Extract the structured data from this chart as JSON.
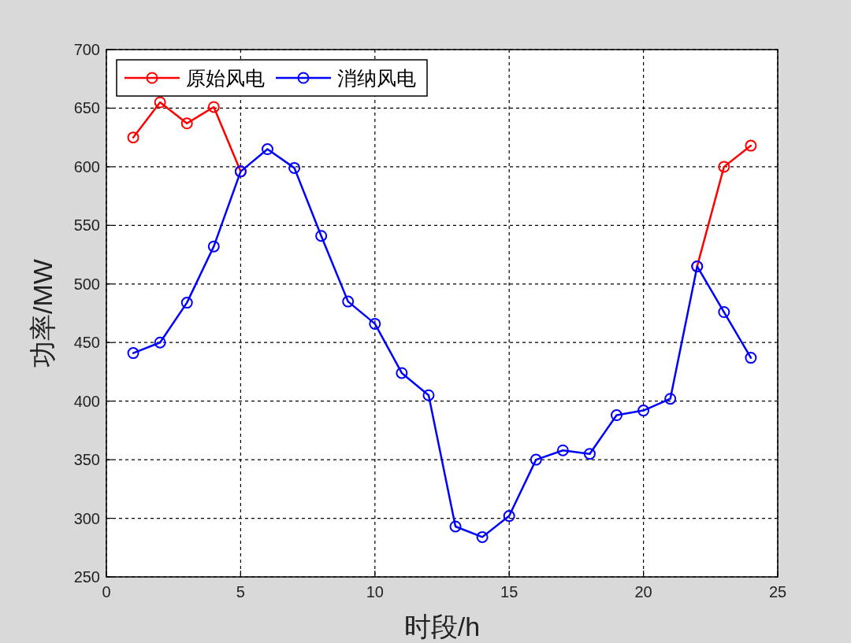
{
  "chart_data": {
    "type": "line",
    "xlabel": "时段/h",
    "ylabel": "功率/MW",
    "x": [
      1,
      2,
      3,
      4,
      5,
      6,
      7,
      8,
      9,
      10,
      11,
      12,
      13,
      14,
      15,
      16,
      17,
      18,
      19,
      20,
      21,
      22,
      23,
      24
    ],
    "xlim": [
      0,
      25
    ],
    "xticks": [
      0,
      5,
      10,
      15,
      20,
      25
    ],
    "ylim": [
      250,
      700
    ],
    "yticks": [
      250,
      300,
      350,
      400,
      450,
      500,
      550,
      600,
      650,
      700
    ],
    "grid": true,
    "legend": "top left",
    "marker": "circle",
    "line_style": "solid",
    "series": [
      {
        "name": "原始风电",
        "color": "#ff0000",
        "values": [
          625,
          655,
          637,
          651,
          596,
          null,
          null,
          null,
          null,
          null,
          null,
          null,
          null,
          null,
          null,
          null,
          null,
          null,
          null,
          null,
          null,
          515,
          600,
          618
        ]
      },
      {
        "name": "消纳风电",
        "color": "#0000ff",
        "values": [
          441,
          450,
          484,
          532,
          596,
          615,
          599,
          541,
          485,
          466,
          424,
          405,
          293,
          284,
          302,
          350,
          358,
          355,
          388,
          392,
          402,
          515,
          476,
          437
        ]
      }
    ]
  }
}
